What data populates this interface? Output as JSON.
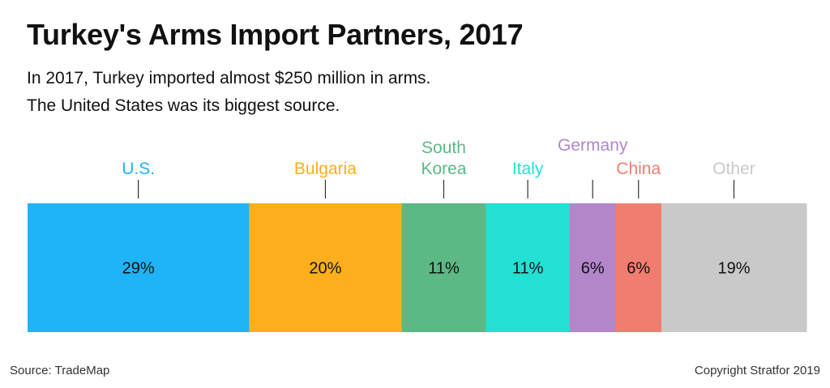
{
  "title": "Turkey's Arms Import Partners, 2017",
  "subtitle": [
    "In 2017, Turkey imported almost $250 million in arms.",
    "The United States was its biggest source."
  ],
  "source": "Source: TradeMap",
  "copyright": "Copyright Stratfor 2019",
  "chart_data": {
    "type": "bar",
    "orientation": "stacked-horizontal",
    "unit": "%",
    "title": "Turkey's Arms Import Partners, 2017",
    "categories": [
      "U.S.",
      "Bulgaria",
      "South Korea",
      "Italy",
      "Germany",
      "China",
      "Other"
    ],
    "label_lines": [
      [
        "U.S."
      ],
      [
        "Bulgaria"
      ],
      [
        "South",
        "Korea"
      ],
      [
        "Italy"
      ],
      [
        "Germany"
      ],
      [
        "China"
      ],
      [
        "Other"
      ]
    ],
    "values": [
      29,
      20,
      11,
      11,
      6,
      6,
      19
    ],
    "value_labels": [
      "29%",
      "20%",
      "11%",
      "11%",
      "6%",
      "6%",
      "19%"
    ],
    "colors": [
      "#1fb4f7",
      "#fcae1c",
      "#5cb885",
      "#23e0d4",
      "#b286c9",
      "#f07d70",
      "#c9c9c9"
    ],
    "label_colors": [
      "#1fb4f7",
      "#fcae1c",
      "#5cb885",
      "#23e0d4",
      "#b286c9",
      "#f07d70",
      "#c9c9c9"
    ]
  }
}
